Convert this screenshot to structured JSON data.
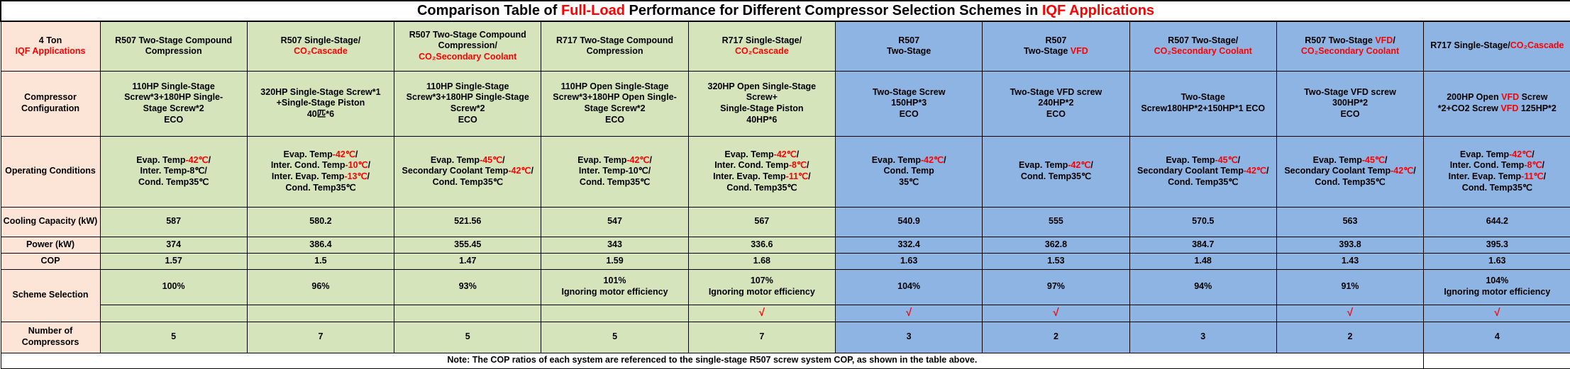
{
  "colors": {
    "red_accent": "#FF0000",
    "label_column_bg": "#FCE4D6",
    "green_group_bg": "#D6E4BC",
    "blue_group_bg": "#8EB4E3",
    "border": "#000000",
    "background": "#FFFFFF"
  },
  "title_segments": [
    [
      {
        "t": "Comparison Table of "
      },
      {
        "t": "Full-Load",
        "r": true
      },
      {
        "t": " Performance for Different Compressor Selection Schemes in "
      },
      {
        "t": "IQF Applications",
        "r": true
      }
    ]
  ],
  "corner_label": [
    [
      {
        "t": "4 Ton"
      }
    ],
    [
      {
        "t": "IQF Applications",
        "r": true
      }
    ]
  ],
  "row_labels": {
    "config": "Compressor Configuration",
    "conditions": "Operating Conditions",
    "cooling": "Cooling Capacity (kW)",
    "power": "Power (kW)",
    "cop": "COP",
    "scheme": "Scheme Selection",
    "count": "Number of Compressors"
  },
  "checkmark_glyph": "√",
  "note": "Note: The COP ratios of each system are referenced to the single-stage R507 screw system COP, as shown in the table above.",
  "columns": [
    {
      "group": "green",
      "header": [
        [
          {
            "t": "R507 Two-Stage Compound"
          }
        ],
        [
          {
            "t": "Compression"
          }
        ]
      ],
      "config": [
        [
          {
            "t": "110HP Single-Stage"
          }
        ],
        [
          {
            "t": "Screw*3+180HP Single-"
          }
        ],
        [
          {
            "t": "Stage Screw*2"
          }
        ],
        [
          {
            "t": "ECO"
          }
        ]
      ],
      "conditions": [
        [
          {
            "t": "Evap. Temp"
          },
          {
            "t": "-42℃",
            "r": true
          },
          {
            "t": "/"
          }
        ],
        [
          {
            "t": "Inter. Temp-8℃/"
          }
        ],
        [
          {
            "t": "Cond. Temp35℃"
          }
        ]
      ],
      "cooling": "587",
      "power": "374",
      "cop": "1.57",
      "scheme": [
        [
          {
            "t": "100%"
          }
        ]
      ],
      "selected": false,
      "count": "5"
    },
    {
      "group": "green",
      "header": [
        [
          {
            "t": "R507 Single-Stage/"
          }
        ],
        [
          {
            "t": "CO₂Cascade",
            "r": true
          }
        ]
      ],
      "config": [
        [
          {
            "t": "320HP Single-Stage Screw*1"
          }
        ],
        [
          {
            "t": "+Single-Stage Piston"
          }
        ],
        [
          {
            "t": "40匹*6"
          }
        ]
      ],
      "conditions": [
        [
          {
            "t": "Evap. Temp"
          },
          {
            "t": "-42℃",
            "r": true
          },
          {
            "t": "/"
          }
        ],
        [
          {
            "t": "Inter. Cond. Temp"
          },
          {
            "t": "-10℃",
            "r": true
          },
          {
            "t": "/"
          }
        ],
        [
          {
            "t": "Inter. Evap. Temp"
          },
          {
            "t": "-13℃",
            "r": true
          },
          {
            "t": "/"
          }
        ],
        [
          {
            "t": "Cond. Temp35℃"
          }
        ]
      ],
      "cooling": "580.2",
      "power": "386.4",
      "cop": "1.5",
      "scheme": [
        [
          {
            "t": "96%"
          }
        ]
      ],
      "selected": false,
      "count": "7"
    },
    {
      "group": "green",
      "header": [
        [
          {
            "t": "R507 Two-Stage Compound"
          }
        ],
        [
          {
            "t": "Compression/"
          }
        ],
        [
          {
            "t": "CO₂Secondary Coolant",
            "r": true
          }
        ]
      ],
      "config": [
        [
          {
            "t": "110HP Single-Stage"
          }
        ],
        [
          {
            "t": "Screw*3+180HP Single-Stage"
          }
        ],
        [
          {
            "t": "Screw*2"
          }
        ],
        [
          {
            "t": "ECO"
          }
        ]
      ],
      "conditions": [
        [
          {
            "t": "Evap. Temp"
          },
          {
            "t": "-45℃",
            "r": true
          },
          {
            "t": "/"
          }
        ],
        [
          {
            "t": "Secondary Coolant Temp"
          },
          {
            "t": "-42℃",
            "r": true
          },
          {
            "t": "/"
          }
        ],
        [
          {
            "t": "Cond. Temp35℃"
          }
        ]
      ],
      "cooling": "521.56",
      "power": "355.45",
      "cop": "1.47",
      "scheme": [
        [
          {
            "t": "93%"
          }
        ]
      ],
      "selected": false,
      "count": "5"
    },
    {
      "group": "green",
      "header": [
        [
          {
            "t": "R717 Two-Stage Compound"
          }
        ],
        [
          {
            "t": "Compression"
          }
        ]
      ],
      "config": [
        [
          {
            "t": "110HP Open Single-Stage"
          }
        ],
        [
          {
            "t": "Screw*3+180HP Open Single-"
          }
        ],
        [
          {
            "t": "Stage Screw*2"
          }
        ],
        [
          {
            "t": "ECO"
          }
        ]
      ],
      "conditions": [
        [
          {
            "t": "Evap. Temp"
          },
          {
            "t": "-42℃",
            "r": true
          },
          {
            "t": "/"
          }
        ],
        [
          {
            "t": "Inter. Temp-10℃/"
          }
        ],
        [
          {
            "t": "Cond. Temp35℃"
          }
        ]
      ],
      "cooling": "547",
      "power": "343",
      "cop": "1.59",
      "scheme": [
        [
          {
            "t": "101%"
          }
        ],
        [
          {
            "t": "Ignoring motor efficiency"
          }
        ]
      ],
      "selected": false,
      "count": "5"
    },
    {
      "group": "green",
      "header": [
        [
          {
            "t": "R717 Single-Stage/"
          }
        ],
        [
          {
            "t": "CO₂Cascade",
            "r": true
          }
        ]
      ],
      "config": [
        [
          {
            "t": "320HP Open Single-Stage"
          }
        ],
        [
          {
            "t": "Screw+"
          }
        ],
        [
          {
            "t": "Single-Stage Piston"
          }
        ],
        [
          {
            "t": "40HP*6"
          }
        ]
      ],
      "conditions": [
        [
          {
            "t": "Evap. Temp"
          },
          {
            "t": "-42℃",
            "r": true
          },
          {
            "t": "/"
          }
        ],
        [
          {
            "t": "Inter. Cond. Temp"
          },
          {
            "t": "-8℃",
            "r": true
          },
          {
            "t": "/"
          }
        ],
        [
          {
            "t": "Inter. Evap. Temp"
          },
          {
            "t": "-11℃",
            "r": true
          },
          {
            "t": "/"
          }
        ],
        [
          {
            "t": "Cond. Temp35℃"
          }
        ]
      ],
      "cooling": "567",
      "power": "336.6",
      "cop": "1.68",
      "scheme": [
        [
          {
            "t": "107%"
          }
        ],
        [
          {
            "t": "Ignoring motor efficiency"
          }
        ]
      ],
      "selected": true,
      "count": "7"
    },
    {
      "group": "blue",
      "header": [
        [
          {
            "t": "R507"
          }
        ],
        [
          {
            "t": "Two-Stage"
          }
        ]
      ],
      "config": [
        [
          {
            "t": "Two-Stage Screw"
          }
        ],
        [
          {
            "t": "150HP*3"
          }
        ],
        [
          {
            "t": "ECO"
          }
        ]
      ],
      "conditions": [
        [
          {
            "t": "Evap. Temp"
          },
          {
            "t": "-42℃",
            "r": true
          },
          {
            "t": "/"
          }
        ],
        [
          {
            "t": "Cond. Temp"
          }
        ],
        [
          {
            "t": "35℃"
          }
        ]
      ],
      "cooling": "540.9",
      "power": "332.4",
      "cop": "1.63",
      "scheme": [
        [
          {
            "t": "104%"
          }
        ]
      ],
      "selected": true,
      "count": "3"
    },
    {
      "group": "blue",
      "header": [
        [
          {
            "t": "R507"
          }
        ],
        [
          {
            "t": "Two-Stage "
          },
          {
            "t": "VFD",
            "r": true
          }
        ]
      ],
      "config": [
        [
          {
            "t": "Two-Stage VFD screw"
          }
        ],
        [
          {
            "t": "240HP*2"
          }
        ],
        [
          {
            "t": "ECO"
          }
        ]
      ],
      "conditions": [
        [
          {
            "t": "Evap. Temp"
          },
          {
            "t": "-42℃",
            "r": true
          },
          {
            "t": "/"
          }
        ],
        [
          {
            "t": "Cond. Temp35℃"
          }
        ]
      ],
      "cooling": "555",
      "power": "362.8",
      "cop": "1.53",
      "scheme": [
        [
          {
            "t": "97%"
          }
        ]
      ],
      "selected": true,
      "count": "2"
    },
    {
      "group": "blue",
      "header": [
        [
          {
            "t": "R507 Two-Stage/"
          }
        ],
        [
          {
            "t": "CO₂Secondary Coolant",
            "r": true
          }
        ]
      ],
      "config": [
        [
          {
            "t": "Two-Stage"
          }
        ],
        [
          {
            "t": "Screw180HP*2+150HP*1 ECO"
          }
        ]
      ],
      "conditions": [
        [
          {
            "t": "Evap. Temp"
          },
          {
            "t": "-45℃",
            "r": true
          },
          {
            "t": "/"
          }
        ],
        [
          {
            "t": "Secondary Coolant Temp"
          },
          {
            "t": "-42℃",
            "r": true
          },
          {
            "t": "/"
          }
        ],
        [
          {
            "t": "Cond. Temp35℃"
          }
        ]
      ],
      "cooling": "570.5",
      "power": "384.7",
      "cop": "1.48",
      "scheme": [
        [
          {
            "t": "94%"
          }
        ]
      ],
      "selected": false,
      "count": "3"
    },
    {
      "group": "blue",
      "header": [
        [
          {
            "t": "R507 Two-Stage "
          },
          {
            "t": "VFD",
            "r": true
          },
          {
            "t": "/"
          }
        ],
        [
          {
            "t": "CO₂Secondary Coolant",
            "r": true
          }
        ]
      ],
      "config": [
        [
          {
            "t": "Two-Stage VFD screw"
          }
        ],
        [
          {
            "t": "300HP*2"
          }
        ],
        [
          {
            "t": "ECO"
          }
        ]
      ],
      "conditions": [
        [
          {
            "t": "Evap. Temp"
          },
          {
            "t": "-45℃",
            "r": true
          },
          {
            "t": "/"
          }
        ],
        [
          {
            "t": "Secondary Coolant Temp"
          },
          {
            "t": "-42℃",
            "r": true
          },
          {
            "t": "/"
          }
        ],
        [
          {
            "t": "Cond. Temp35℃"
          }
        ]
      ],
      "cooling": "563",
      "power": "393.8",
      "cop": "1.43",
      "scheme": [
        [
          {
            "t": "91%"
          }
        ]
      ],
      "selected": true,
      "count": "2"
    },
    {
      "group": "blue",
      "header": [
        [
          {
            "t": "R717 Single-Stage/"
          },
          {
            "t": "CO₂Cascade",
            "r": true
          }
        ]
      ],
      "config": [
        [
          {
            "t": "200HP Open "
          },
          {
            "t": "VFD",
            "r": true
          },
          {
            "t": " Screw"
          }
        ],
        [
          {
            "t": "*2+CO2 Screw "
          },
          {
            "t": "VFD",
            "r": true
          },
          {
            "t": " 125HP*2"
          }
        ]
      ],
      "conditions": [
        [
          {
            "t": "Evap. Temp"
          },
          {
            "t": "-42℃",
            "r": true
          },
          {
            "t": "/"
          }
        ],
        [
          {
            "t": "Inter. Cond. Temp"
          },
          {
            "t": "-8℃",
            "r": true
          },
          {
            "t": "/"
          }
        ],
        [
          {
            "t": "Inter. Evap. Temp"
          },
          {
            "t": "-11℃",
            "r": true
          },
          {
            "t": "/"
          }
        ],
        [
          {
            "t": "Cond. Temp35℃"
          }
        ]
      ],
      "cooling": "644.2",
      "power": "395.3",
      "cop": "1.63",
      "scheme": [
        [
          {
            "t": "104%"
          }
        ],
        [
          {
            "t": "Ignoring motor efficiency"
          }
        ]
      ],
      "selected": true,
      "count": "4"
    }
  ],
  "chart_data": {
    "type": "table",
    "title": "Comparison Table of Full-Load Performance for Different Compressor Selection Schemes in IQF Applications",
    "row_headers": [
      "Cooling Capacity (kW)",
      "Power (kW)",
      "COP",
      "Scheme Selection",
      "Number of Compressors"
    ],
    "column_headers": [
      "R507 Two-Stage Compound Compression",
      "R507 Single-Stage/CO₂Cascade",
      "R507 Two-Stage Compound Compression/CO₂Secondary Coolant",
      "R717 Two-Stage Compound Compression",
      "R717 Single-Stage/CO₂Cascade",
      "R507 Two-Stage",
      "R507 Two-Stage VFD",
      "R507 Two-Stage/CO₂Secondary Coolant",
      "R507 Two-Stage VFD/CO₂Secondary Coolant",
      "R717 Single-Stage/CO₂Cascade"
    ],
    "cooling_capacity_kw": [
      587,
      580.2,
      521.56,
      547,
      567,
      540.9,
      555,
      570.5,
      563,
      644.2
    ],
    "power_kw": [
      374,
      386.4,
      355.45,
      343,
      336.6,
      332.4,
      362.8,
      384.7,
      393.8,
      395.3
    ],
    "cop": [
      1.57,
      1.5,
      1.47,
      1.59,
      1.68,
      1.63,
      1.53,
      1.48,
      1.43,
      1.63
    ],
    "scheme_selection_pct": [
      "100%",
      "96%",
      "93%",
      "101% Ignoring motor efficiency",
      "107% Ignoring motor efficiency",
      "104%",
      "97%",
      "94%",
      "91%",
      "104% Ignoring motor efficiency"
    ],
    "selected_schemes": [
      false,
      false,
      false,
      false,
      true,
      true,
      true,
      false,
      true,
      true
    ],
    "number_of_compressors": [
      5,
      7,
      5,
      5,
      7,
      3,
      2,
      3,
      2,
      4
    ]
  }
}
